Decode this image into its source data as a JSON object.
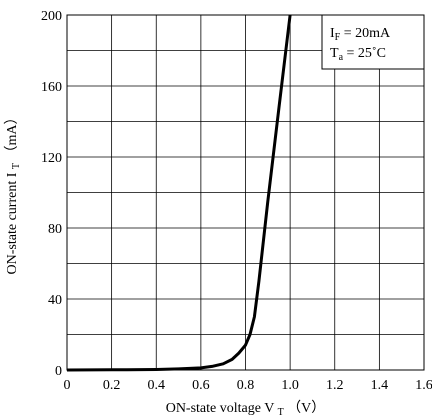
{
  "chart_data": {
    "type": "line",
    "title": "",
    "xlabel": {
      "main": "ON-state voltage V",
      "sub": "T",
      "unit": "（V）"
    },
    "ylabel": {
      "main": "ON-state current I",
      "sub": "T",
      "unit": "（mA）"
    },
    "xlim": [
      0,
      1.6
    ],
    "ylim": [
      0,
      200
    ],
    "x_ticks": [
      "0",
      "0.2",
      "0.4",
      "0.6",
      "0.8",
      "1.0",
      "1.2",
      "1.4",
      "1.6"
    ],
    "y_ticks": [
      "0",
      "40",
      "80",
      "120",
      "160",
      "200"
    ],
    "grid": true,
    "legend_placement": "top-right",
    "conditions": [
      {
        "symbol": "I",
        "sub": "F",
        "text": " = 20mA"
      },
      {
        "symbol": "T",
        "sub": "a",
        "text": " = 25˚C"
      }
    ],
    "series": [
      {
        "color": "#000000",
        "x": [
          0,
          0.2,
          0.4,
          0.5,
          0.6,
          0.65,
          0.7,
          0.74,
          0.77,
          0.8,
          0.82,
          0.84,
          0.86,
          0.9,
          0.95,
          1.0
        ],
        "y": [
          0,
          0.1,
          0.3,
          0.6,
          1.2,
          2.0,
          3.5,
          6.0,
          9.5,
          14,
          20,
          30,
          50,
          95,
          148,
          200
        ]
      }
    ]
  }
}
